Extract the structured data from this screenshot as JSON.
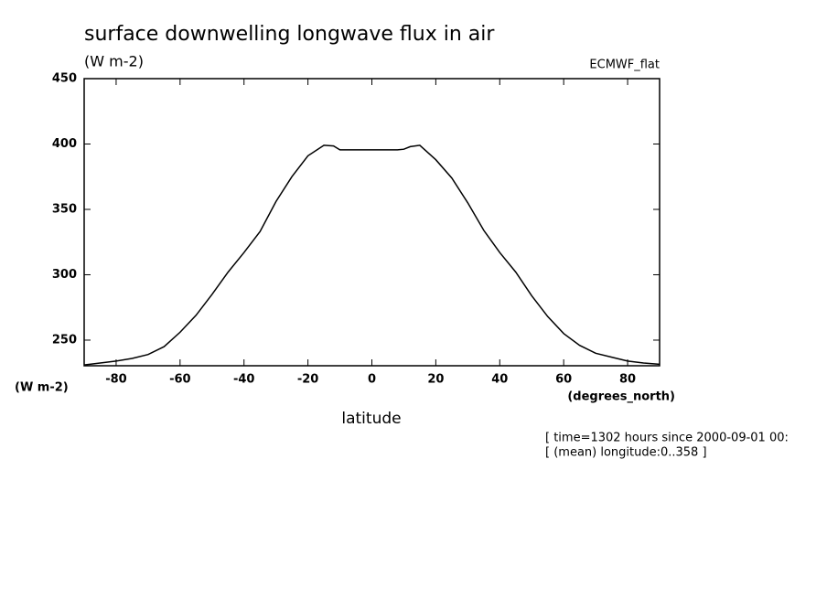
{
  "chart_data": {
    "type": "line",
    "title": "surface downwelling longwave flux in air",
    "units": "(W m-2)",
    "dataset": "ECMWF_flat",
    "ylabel": "(W m-2)",
    "xunits": "(degrees_north)",
    "xlabel": "latitude",
    "notes": [
      "[ time=1302 hours since 2000-09-01 00:",
      "[ (mean) longitude:0..358 ]"
    ],
    "x": [
      -90,
      -85,
      -80,
      -75,
      -70,
      -65,
      -60,
      -55,
      -50,
      -45,
      -40,
      -35,
      -30,
      -25,
      -20,
      -15,
      -12,
      -10,
      -5,
      0,
      5,
      8,
      10,
      12,
      15,
      20,
      25,
      30,
      35,
      40,
      45,
      50,
      55,
      60,
      65,
      70,
      75,
      80,
      85,
      90
    ],
    "series": [
      {
        "color": "#000000",
        "values": [
          231,
          232.5,
          234,
          236,
          239,
          245,
          256,
          269,
          285,
          302,
          317,
          333,
          356,
          375,
          391,
          399,
          398.5,
          395.5,
          395.5,
          395.5,
          395.5,
          395.5,
          396,
          398,
          399,
          388,
          374,
          355,
          334,
          317,
          302,
          284,
          268,
          255,
          246,
          240,
          237,
          234,
          232.5,
          231.5
        ]
      }
    ],
    "xlim": [
      -90,
      90
    ],
    "xticks": [
      -80,
      -60,
      -40,
      -20,
      0,
      20,
      40,
      60,
      80
    ],
    "ylim": [
      230.4,
      450
    ],
    "yticks": [
      250,
      300,
      350,
      400,
      450
    ]
  }
}
